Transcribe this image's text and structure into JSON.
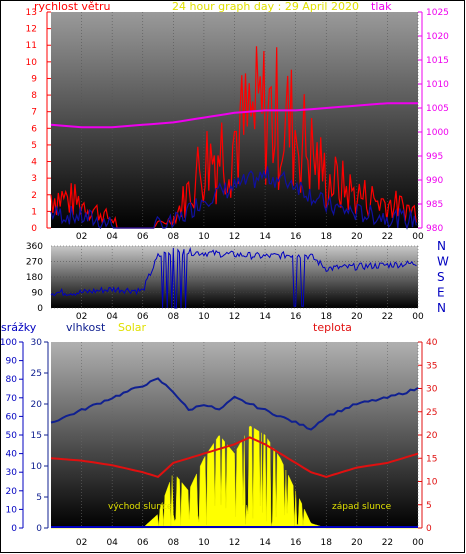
{
  "page_title": "24 hour graph day : 29 April 2020",
  "colors": {
    "wind": "#ff0000",
    "gust": "#1010a0",
    "pressure": "#ee00ee",
    "humidity": "#102090",
    "solar": "#ffff00",
    "temperature": "#e01010",
    "rain": "#0000c0",
    "direction": "#0000c0",
    "sunrise_text": "#e0e000"
  },
  "panel1": {
    "left_title": "rychlost větru",
    "right_title": "tlak",
    "left_axis": [
      "0",
      "1",
      "2",
      "3",
      "4",
      "5",
      "6",
      "7",
      "8",
      "9",
      "10",
      "11",
      "12",
      "13"
    ],
    "right_axis": [
      "980",
      "985",
      "990",
      "995",
      "1000",
      "1005",
      "1010",
      "1015",
      "1020",
      "1025"
    ],
    "x_ticks": [
      "02",
      "04",
      "06",
      "08",
      "10",
      "12",
      "14",
      "16",
      "18",
      "20",
      "22",
      "00"
    ]
  },
  "panel2": {
    "left_axis": [
      "0",
      "90",
      "180",
      "270",
      "360"
    ],
    "compass": [
      "N",
      "W",
      "S",
      "E",
      "N"
    ],
    "x_ticks": [
      "02",
      "04",
      "06",
      "08",
      "10",
      "12",
      "14",
      "16",
      "18",
      "20",
      "22",
      "00"
    ]
  },
  "panel3": {
    "rain_title": "srážky",
    "humidity_title": "vlhkost",
    "solar_title": "Solar",
    "temp_title": "teplota",
    "rain_axis": [
      "0",
      "10",
      "20",
      "30",
      "40",
      "50",
      "60",
      "70",
      "80",
      "90",
      "100"
    ],
    "humidity_axis": [
      "0",
      "5",
      "10",
      "15",
      "20",
      "25",
      "30"
    ],
    "temp_axis": [
      "0",
      "5",
      "10",
      "15",
      "20",
      "25",
      "30",
      "35",
      "40"
    ],
    "sunrise_label": "východ slunce",
    "sunset_label": "západ slunce",
    "x_ticks": [
      "02",
      "04",
      "06",
      "08",
      "10",
      "12",
      "14",
      "16",
      "18",
      "20",
      "22",
      "00"
    ]
  },
  "chart_data": [
    {
      "type": "line",
      "title": "24 hour graph day : 29 April 2020",
      "x": [
        0,
        2,
        4,
        6,
        8,
        10,
        12,
        14,
        16,
        18,
        20,
        22,
        24
      ],
      "series": [
        {
          "name": "rychlost větru",
          "axis": "left",
          "values": [
            2,
            1.5,
            0.5,
            0,
            0.5,
            4,
            5.5,
            7,
            6,
            3,
            2,
            1.5,
            1
          ]
        },
        {
          "name": "tlak",
          "axis": "right",
          "values": [
            1001.5,
            1001,
            1001,
            1001.5,
            1002,
            1003,
            1004,
            1004.5,
            1004.5,
            1005,
            1005.5,
            1006,
            1006
          ]
        }
      ],
      "ylim_left": [
        0,
        13
      ],
      "ylim_right": [
        980,
        1025
      ]
    },
    {
      "type": "line",
      "x": [
        0,
        2,
        4,
        6,
        7,
        8,
        10,
        12,
        14,
        16,
        17,
        18,
        20,
        22,
        24
      ],
      "series": [
        {
          "name": "wind direction",
          "values": [
            90,
            90,
            110,
            100,
            300,
            330,
            320,
            310,
            300,
            310,
            300,
            230,
            240,
            250,
            260
          ]
        }
      ],
      "ylim": [
        0,
        360
      ]
    },
    {
      "type": "area",
      "x": [
        0,
        2,
        4,
        6,
        7,
        8,
        9,
        10,
        11,
        12,
        13,
        14,
        15,
        16,
        17,
        18,
        20,
        22,
        24
      ],
      "series": [
        {
          "name": "vlhkost",
          "axis": "left2",
          "values": [
            17,
            19,
            21,
            23,
            24,
            22,
            19,
            20,
            19,
            21,
            20,
            19,
            18,
            17,
            16,
            18,
            20,
            21,
            22.5
          ]
        },
        {
          "name": "teplota",
          "axis": "right",
          "values": [
            15,
            14.5,
            13.5,
            12,
            11,
            14,
            15,
            16,
            17,
            18,
            19.5,
            18,
            16,
            14,
            12,
            11,
            13,
            14,
            16
          ]
        },
        {
          "name": "Solar",
          "axis": "right",
          "values": [
            0,
            0,
            0,
            0,
            3,
            12,
            8,
            15,
            20,
            16,
            22,
            20,
            15,
            8,
            1,
            0,
            0,
            0,
            0
          ]
        },
        {
          "name": "srážky",
          "axis": "left",
          "values": [
            0,
            0,
            0,
            0,
            0,
            0,
            0,
            0,
            0,
            0,
            0,
            0,
            0,
            0,
            0,
            0,
            0,
            0,
            0
          ]
        }
      ],
      "ylim_rain": [
        0,
        100
      ],
      "ylim_humidity": [
        0,
        30
      ],
      "ylim_temp": [
        0,
        40
      ]
    }
  ]
}
